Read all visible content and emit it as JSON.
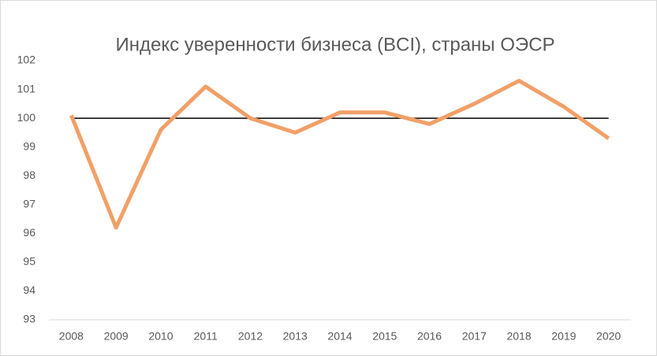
{
  "chart_data": {
    "type": "line",
    "title": "Индекс уверенности бизнеса (BCI), страны ОЭСР",
    "categories": [
      "2008",
      "2009",
      "2010",
      "2011",
      "2012",
      "2013",
      "2014",
      "2015",
      "2016",
      "2017",
      "2018",
      "2019",
      "2020"
    ],
    "values": [
      100.1,
      96.2,
      99.6,
      101.1,
      100.0,
      99.5,
      100.2,
      100.2,
      99.8,
      100.5,
      101.3,
      100.4,
      99.3
    ],
    "color": "#f1a068",
    "reference_line": 100,
    "reference_color": "#000000",
    "ylim": [
      93,
      102
    ],
    "yticks": [
      93,
      94,
      95,
      96,
      97,
      98,
      99,
      100,
      101,
      102
    ],
    "grid": false
  }
}
